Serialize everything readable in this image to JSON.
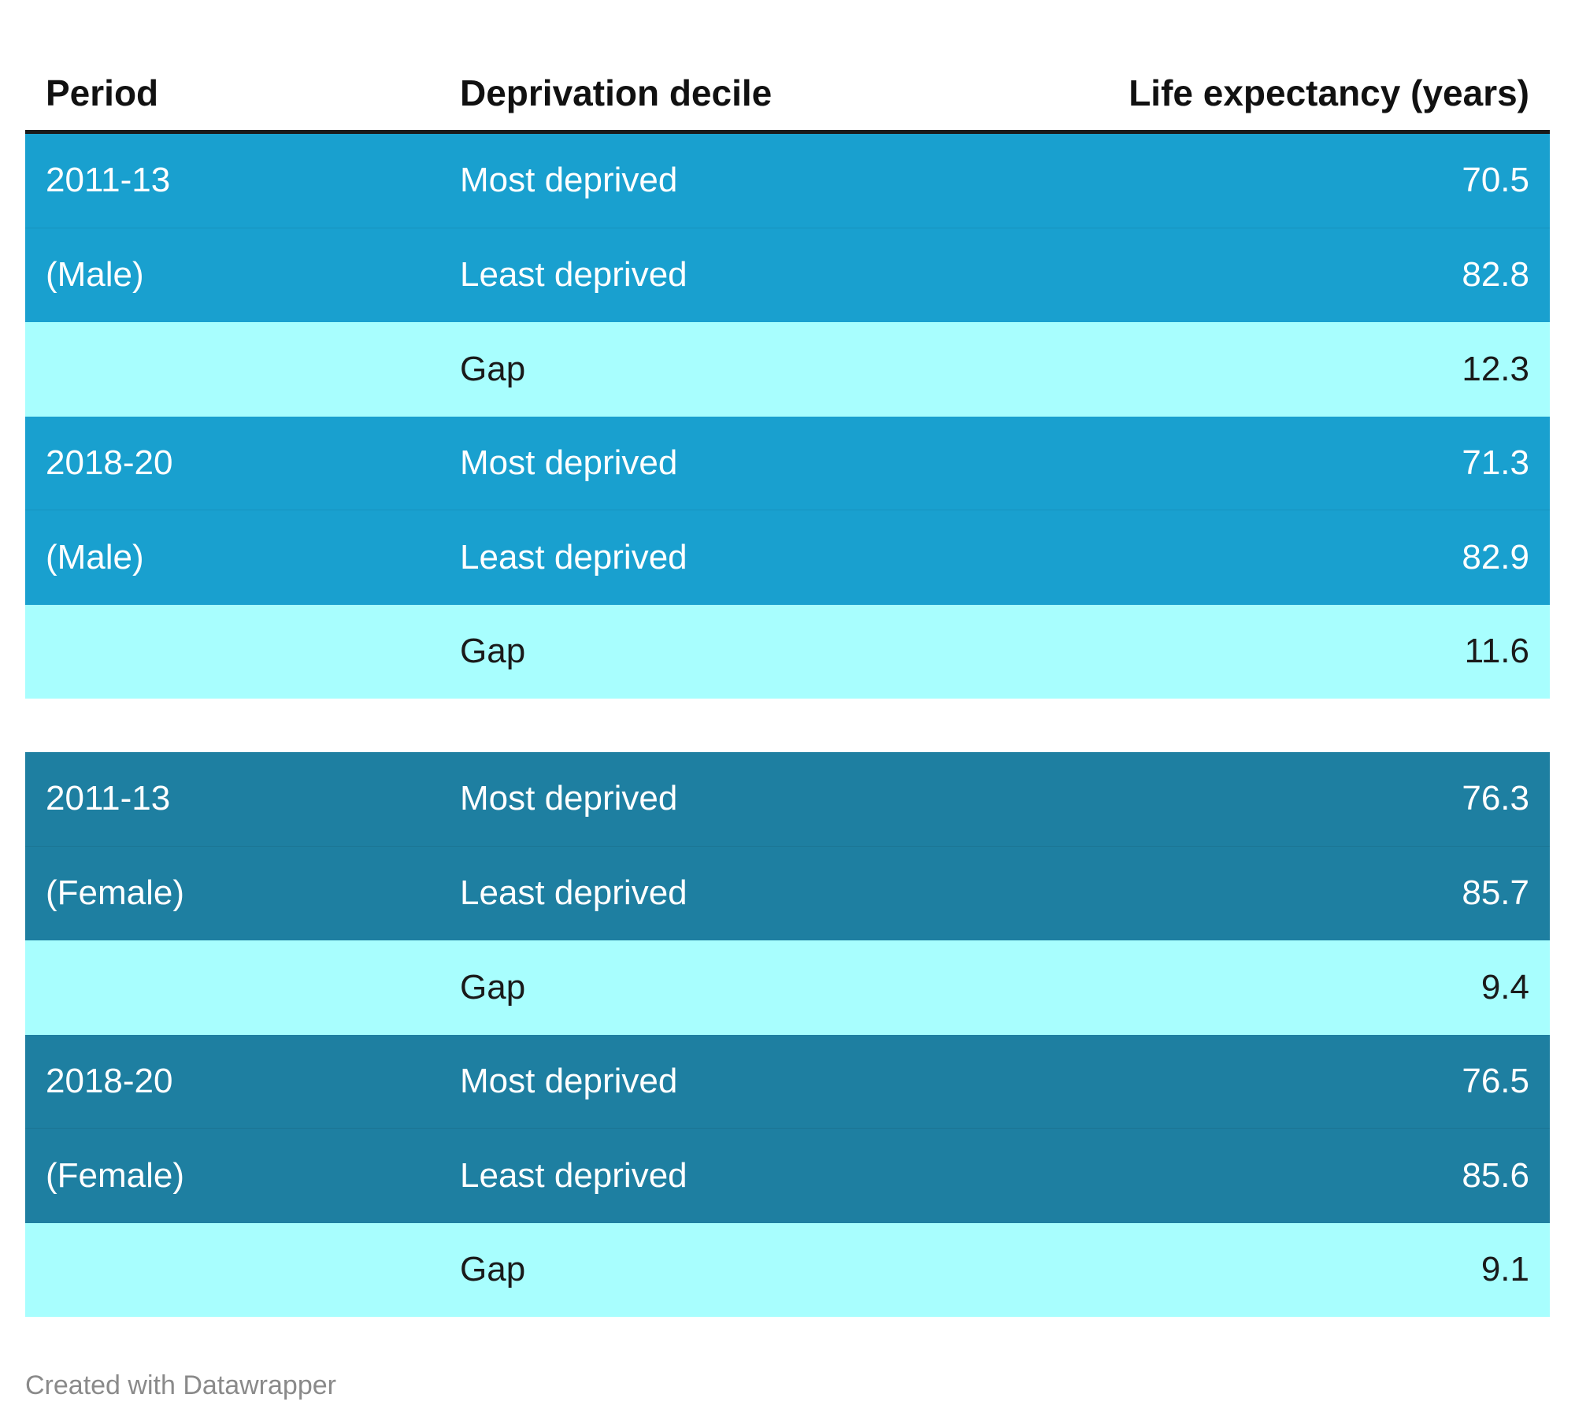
{
  "chart_data": {
    "type": "table",
    "columns": [
      "Period",
      "Deprivation decile",
      "Life expectancy (years)"
    ],
    "groups": [
      {
        "rows": [
          {
            "period": "2011-13",
            "decile": "Most deprived",
            "value": "70.5",
            "style": "male"
          },
          {
            "period": "(Male)",
            "decile": "Least deprived",
            "value": "82.8",
            "style": "male"
          },
          {
            "period": "",
            "decile": "Gap",
            "value": "12.3",
            "style": "gap"
          },
          {
            "period": "2018-20",
            "decile": "Most deprived",
            "value": "71.3",
            "style": "male"
          },
          {
            "period": "(Male)",
            "decile": "Least deprived",
            "value": "82.9",
            "style": "male"
          },
          {
            "period": "",
            "decile": "Gap",
            "value": "11.6",
            "style": "gap"
          }
        ]
      },
      {
        "rows": [
          {
            "period": "2011-13",
            "decile": "Most deprived",
            "value": "76.3",
            "style": "female"
          },
          {
            "period": "(Female)",
            "decile": "Least deprived",
            "value": "85.7",
            "style": "female"
          },
          {
            "period": "",
            "decile": "Gap",
            "value": "9.4",
            "style": "gap"
          },
          {
            "period": "2018-20",
            "decile": "Most deprived",
            "value": "76.5",
            "style": "female"
          },
          {
            "period": "(Female)",
            "decile": "Least deprived",
            "value": "85.6",
            "style": "female"
          },
          {
            "period": "",
            "decile": "Gap",
            "value": "9.1",
            "style": "gap"
          }
        ]
      }
    ],
    "colors": {
      "male_row": "#19a0cf",
      "female_row": "#1e7fa1",
      "gap_row": "#a8fefe"
    }
  },
  "footer": {
    "credit": "Created with Datawrapper"
  }
}
